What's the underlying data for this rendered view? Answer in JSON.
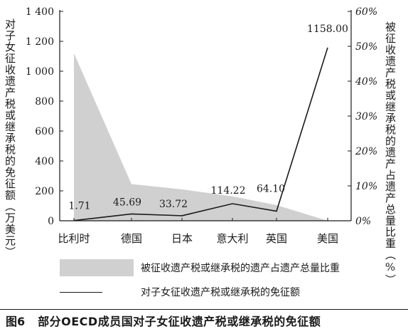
{
  "caption": {
    "number": "图6",
    "text": "部分OECD成员国对子女征收遗产税或继承税的免征额"
  },
  "legend": {
    "area_label": "被征收遗产税或继承税的遗产占遗产总量比重",
    "line_label": "对子女征收遗产税或继承税的免征额"
  },
  "colors": {
    "area_fill": "#d0d0d0",
    "line": "#1a1a1a"
  },
  "chart_data": {
    "type": "line+area",
    "categories": [
      "比利时",
      "德国",
      "日本",
      "意大利",
      "英国",
      "美国"
    ],
    "ylabel": "对子女征收遗产税或继承税的免征额（万美元）",
    "y2label": "被征收遗产税或继承税的遗产占遗产总量比重（%）",
    "y_ticks": [
      "0",
      "200",
      "400",
      "600",
      "800",
      "1 000",
      "1 200",
      "1 400"
    ],
    "y2_ticks": [
      "0%",
      "10%",
      "20%",
      "30%",
      "40%",
      "50%",
      "60%"
    ],
    "ylim": [
      0,
      1400
    ],
    "y2lim": [
      0,
      60
    ],
    "series": [
      {
        "name": "对子女征收遗产税或继承税的免征额",
        "type": "line",
        "axis": "left",
        "values": [
          1.71,
          45.69,
          33.72,
          114.22,
          64.1,
          1158.0
        ],
        "labels": [
          "1.71",
          "45.69",
          "33.72",
          "114.22",
          "64.10",
          "1158.00"
        ]
      },
      {
        "name": "被征收遗产税或继承税的遗产占遗产总量比重",
        "type": "area",
        "axis": "right",
        "values": [
          48,
          10.5,
          9,
          7,
          4.5,
          0
        ]
      }
    ]
  }
}
